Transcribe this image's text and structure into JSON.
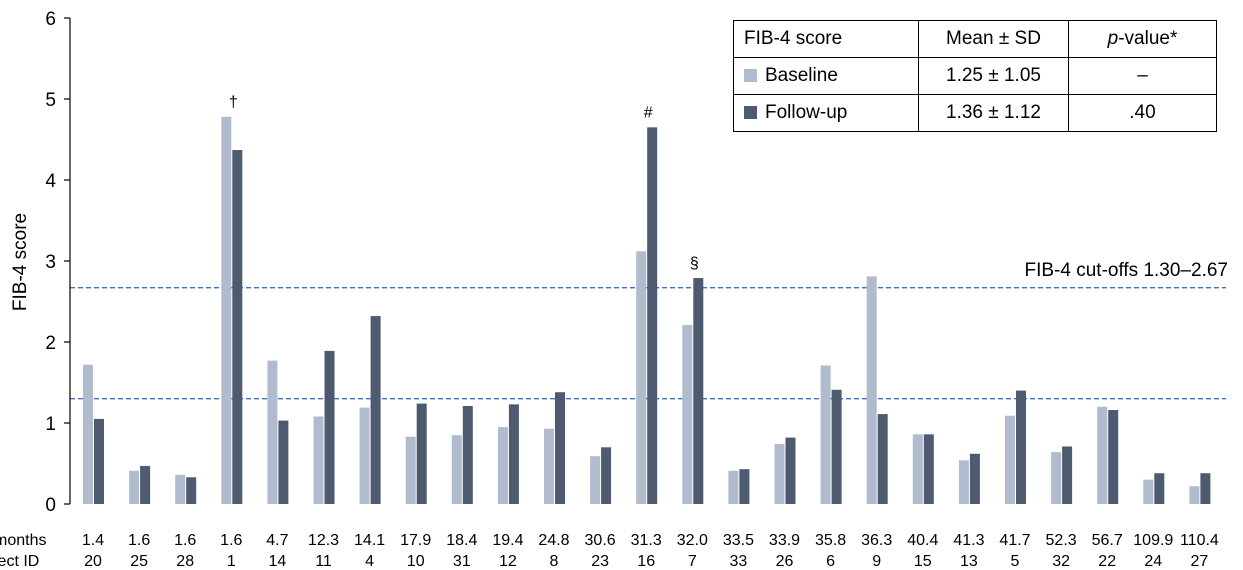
{
  "chart_data": {
    "type": "bar",
    "ylabel": "FIB-4 score",
    "ylim": [
      0,
      6
    ],
    "yticks": [
      0,
      1,
      2,
      3,
      4,
      5,
      6
    ],
    "grid": false,
    "row_labels": {
      "months": "months",
      "subject_id": "ject ID"
    },
    "categories": [
      "20",
      "25",
      "28",
      "1",
      "14",
      "11",
      "4",
      "10",
      "31",
      "12",
      "8",
      "23",
      "16",
      "7",
      "33",
      "26",
      "6",
      "9",
      "15",
      "13",
      "5",
      "32",
      "22",
      "24",
      "27"
    ],
    "months": [
      "1.4",
      "1.6",
      "1.6",
      "1.6",
      "4.7",
      "12.3",
      "14.1",
      "17.9",
      "18.4",
      "19.4",
      "24.8",
      "30.6",
      "31.3",
      "32.0",
      "33.5",
      "33.9",
      "35.8",
      "36.3",
      "40.4",
      "41.3",
      "41.7",
      "52.3",
      "56.7",
      "109.9",
      "110.4"
    ],
    "series": [
      {
        "name": "Baseline",
        "color": "#b0bccd",
        "values": [
          1.72,
          0.41,
          0.36,
          4.78,
          1.77,
          1.08,
          1.19,
          0.83,
          0.85,
          0.95,
          0.93,
          0.59,
          3.12,
          2.21,
          0.41,
          0.74,
          1.71,
          2.81,
          0.86,
          0.54,
          1.09,
          0.64,
          1.2,
          0.3,
          0.22
        ]
      },
      {
        "name": "Follow-up",
        "color": "#4d5a6f",
        "values": [
          1.05,
          0.47,
          0.33,
          4.37,
          1.03,
          1.89,
          2.32,
          1.24,
          1.21,
          1.23,
          1.38,
          0.7,
          4.65,
          2.79,
          0.43,
          0.82,
          1.41,
          1.11,
          0.86,
          0.62,
          1.4,
          0.71,
          1.16,
          0.38,
          0.38
        ]
      }
    ],
    "reference_lines": {
      "values": [
        1.3,
        2.67
      ],
      "label": "FIB-4 cut-offs 1.30–2.67",
      "color": "#4472c4"
    },
    "annotations": [
      {
        "category_index": 3,
        "series_index": 0,
        "text": "†"
      },
      {
        "category_index": 12,
        "series_index": 1,
        "text": "#"
      },
      {
        "category_index": 13,
        "series_index": 1,
        "text": "§"
      }
    ]
  },
  "legend_table": {
    "header": {
      "col1": "FIB-4 score",
      "col2": "Mean ± SD",
      "col3_italic": "p",
      "col3_rest": "-value*"
    },
    "rows": [
      {
        "label": "Baseline",
        "mean_sd": "1.25 ± 1.05",
        "p_value": "–",
        "color": "#b0bccd"
      },
      {
        "label": "Follow-up",
        "mean_sd": "1.36 ± 1.12",
        "p_value": ".40",
        "color": "#4d5a6f"
      }
    ]
  }
}
